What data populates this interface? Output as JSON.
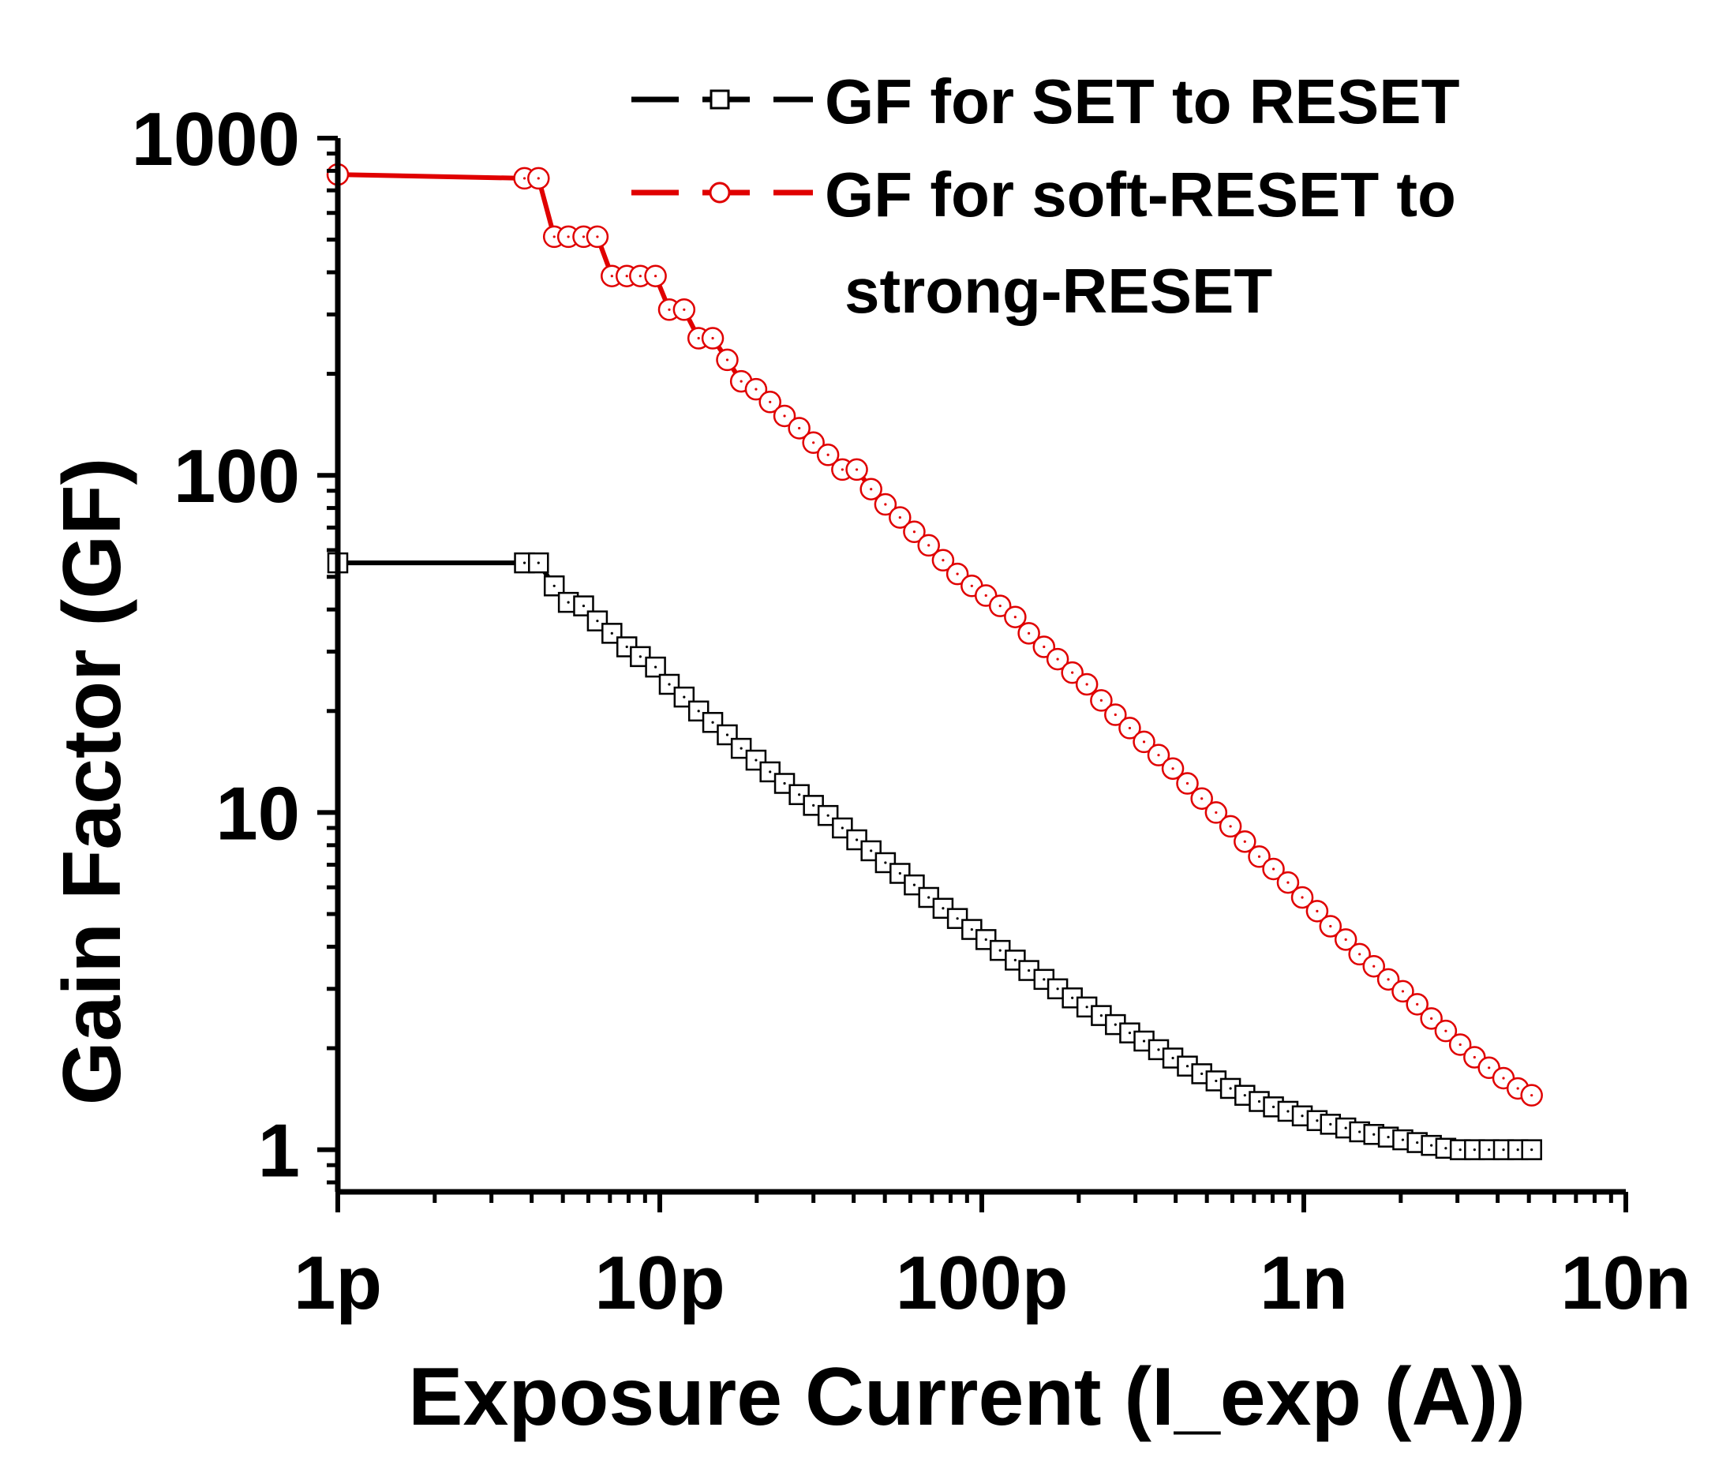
{
  "chart_data": {
    "type": "scatter",
    "title": "",
    "xlabel": "Exposure Current (I_exp (A))",
    "ylabel": "Gain Factor (GF)",
    "xscale": "log",
    "yscale": "log",
    "xlim": [
      1e-12,
      1e-08
    ],
    "ylim": [
      0.75,
      1000
    ],
    "x_ticks": [
      {
        "value": 1e-12,
        "label": "1p"
      },
      {
        "value": 1e-11,
        "label": "10p"
      },
      {
        "value": 1e-10,
        "label": "100p"
      },
      {
        "value": 1e-09,
        "label": "1n"
      },
      {
        "value": 1e-08,
        "label": "10n"
      }
    ],
    "y_ticks": [
      {
        "value": 1,
        "label": "1"
      },
      {
        "value": 10,
        "label": "10"
      },
      {
        "value": 100,
        "label": "100"
      },
      {
        "value": 1000,
        "label": "1000"
      }
    ],
    "legend": {
      "position": "top-right",
      "entries": [
        "GF for SET to RESET",
        "GF for soft-RESET to",
        "strong-RESET"
      ]
    },
    "series": [
      {
        "name": "GF for SET to RESET",
        "color": "#000000",
        "marker": "square",
        "x": [
          1e-12,
          3.8e-12,
          4.2e-12,
          4.7e-12,
          5.2e-12,
          5.8e-12,
          6.4e-12,
          7.1e-12,
          7.9e-12,
          8.7e-12,
          9.7e-12,
          1.07e-11,
          1.19e-11,
          1.32e-11,
          1.46e-11,
          1.62e-11,
          1.79e-11,
          1.99e-11,
          2.2e-11,
          2.44e-11,
          2.71e-11,
          3e-11,
          3.33e-11,
          3.69e-11,
          4.09e-11,
          4.53e-11,
          5.02e-11,
          5.57e-11,
          6.17e-11,
          6.84e-11,
          7.58e-11,
          8.4e-11,
          9.31e-11,
          1.03e-10,
          1.14e-10,
          1.27e-10,
          1.4e-10,
          1.56e-10,
          1.72e-10,
          1.91e-10,
          2.12e-10,
          2.35e-10,
          2.6e-10,
          2.88e-10,
          3.19e-10,
          3.54e-10,
          3.92e-10,
          4.35e-10,
          4.82e-10,
          5.34e-10,
          5.92e-10,
          6.56e-10,
          7.27e-10,
          8.05e-10,
          8.93e-10,
          9.89e-10,
          1.1e-09,
          1.21e-09,
          1.35e-09,
          1.49e-09,
          1.65e-09,
          1.83e-09,
          2.03e-09,
          2.25e-09,
          2.49e-09,
          2.76e-09,
          3.06e-09,
          3.39e-09,
          3.76e-09,
          4.17e-09,
          4.62e-09,
          5.1e-09
        ],
        "y": [
          55,
          55,
          55,
          47,
          42,
          41,
          37,
          34,
          31,
          29,
          27,
          24,
          22,
          20,
          18.5,
          17,
          15.5,
          14.3,
          13.2,
          12.2,
          11.3,
          10.5,
          9.8,
          9,
          8.3,
          7.7,
          7.1,
          6.6,
          6.1,
          5.6,
          5.2,
          4.85,
          4.5,
          4.2,
          3.9,
          3.65,
          3.4,
          3.2,
          3,
          2.82,
          2.65,
          2.5,
          2.35,
          2.22,
          2.1,
          1.98,
          1.87,
          1.77,
          1.68,
          1.6,
          1.52,
          1.45,
          1.39,
          1.34,
          1.3,
          1.26,
          1.22,
          1.19,
          1.16,
          1.13,
          1.11,
          1.09,
          1.07,
          1.05,
          1.03,
          1.01,
          1,
          1,
          1,
          1,
          1,
          1
        ]
      },
      {
        "name": "GF for soft-RESET to strong-RESET",
        "color": "#e00000",
        "marker": "circle",
        "x": [
          1e-12,
          3.8e-12,
          4.2e-12,
          4.7e-12,
          5.2e-12,
          5.8e-12,
          6.4e-12,
          7.1e-12,
          7.9e-12,
          8.7e-12,
          9.7e-12,
          1.07e-11,
          1.19e-11,
          1.32e-11,
          1.46e-11,
          1.62e-11,
          1.79e-11,
          1.99e-11,
          2.2e-11,
          2.44e-11,
          2.71e-11,
          3e-11,
          3.33e-11,
          3.69e-11,
          4.09e-11,
          4.53e-11,
          5.02e-11,
          5.57e-11,
          6.17e-11,
          6.84e-11,
          7.58e-11,
          8.4e-11,
          9.31e-11,
          1.03e-10,
          1.14e-10,
          1.27e-10,
          1.4e-10,
          1.56e-10,
          1.72e-10,
          1.91e-10,
          2.12e-10,
          2.35e-10,
          2.6e-10,
          2.88e-10,
          3.19e-10,
          3.54e-10,
          3.92e-10,
          4.35e-10,
          4.82e-10,
          5.34e-10,
          5.92e-10,
          6.56e-10,
          7.27e-10,
          8.05e-10,
          8.93e-10,
          9.89e-10,
          1.1e-09,
          1.21e-09,
          1.35e-09,
          1.49e-09,
          1.65e-09,
          1.83e-09,
          2.03e-09,
          2.25e-09,
          2.49e-09,
          2.76e-09,
          3.06e-09,
          3.39e-09,
          3.76e-09,
          4.17e-09,
          4.62e-09,
          5.1e-09
        ],
        "y": [
          780,
          760,
          760,
          510,
          510,
          510,
          510,
          390,
          390,
          390,
          390,
          310,
          310,
          255,
          255,
          220,
          190,
          180,
          165,
          150,
          138,
          125,
          115,
          104,
          104,
          91,
          82,
          75,
          68,
          62,
          56,
          51,
          47,
          44,
          41,
          38,
          34,
          31,
          28.5,
          26,
          24,
          21.5,
          19.5,
          17.8,
          16.2,
          14.8,
          13.5,
          12.2,
          11,
          10,
          9.1,
          8.2,
          7.4,
          6.8,
          6.2,
          5.6,
          5.1,
          4.6,
          4.2,
          3.8,
          3.5,
          3.2,
          2.95,
          2.7,
          2.45,
          2.25,
          2.05,
          1.88,
          1.75,
          1.63,
          1.52,
          1.45
        ]
      }
    ]
  }
}
